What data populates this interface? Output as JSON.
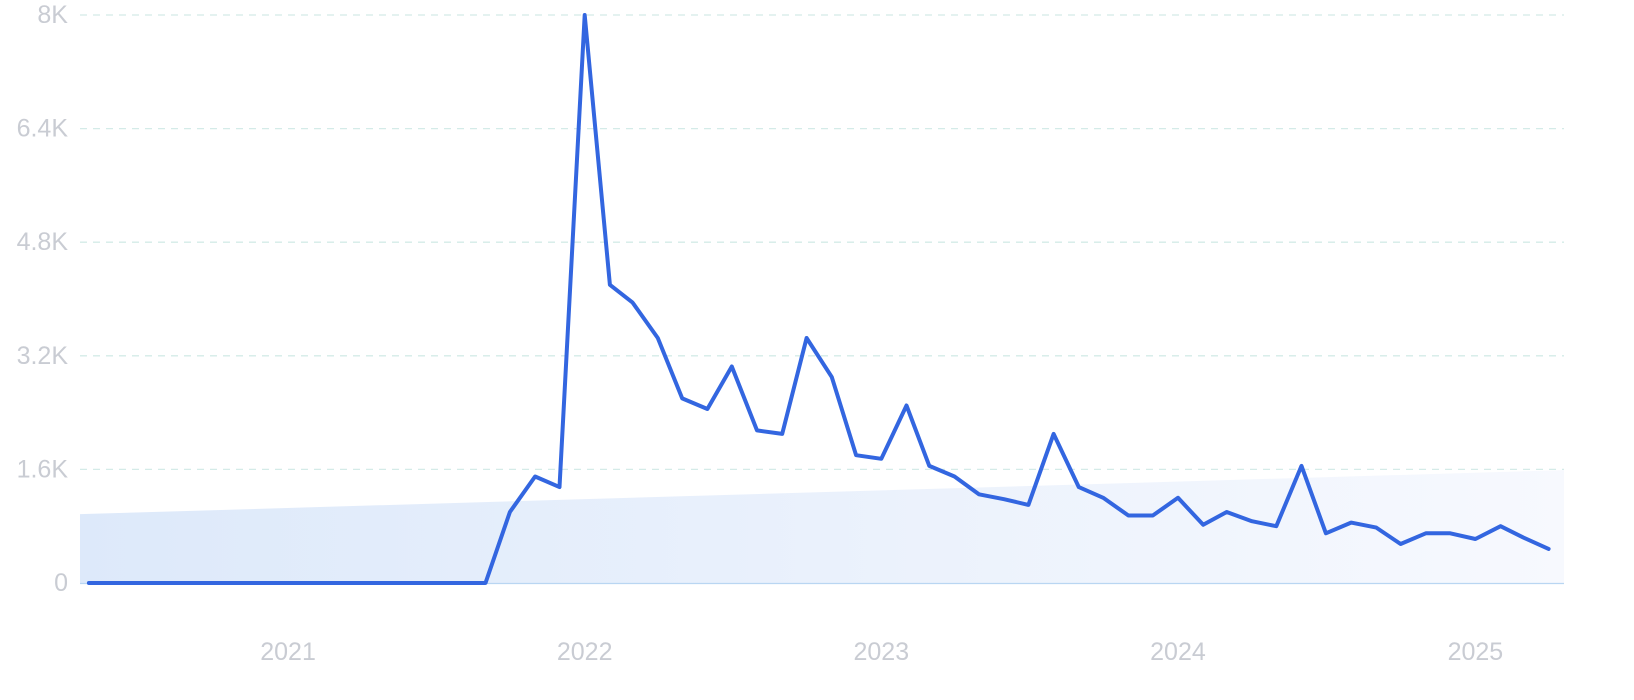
{
  "chart_data": {
    "type": "area",
    "x": [
      "2020-05",
      "2020-06",
      "2020-07",
      "2020-08",
      "2020-09",
      "2020-10",
      "2020-11",
      "2020-12",
      "2021-01",
      "2021-02",
      "2021-03",
      "2021-04",
      "2021-05",
      "2021-06",
      "2021-07",
      "2021-08",
      "2021-09",
      "2021-10",
      "2021-11",
      "2021-12",
      "2022-01",
      "2022-02",
      "2022-03",
      "2022-04",
      "2022-05",
      "2022-06",
      "2022-07",
      "2022-08",
      "2022-09",
      "2022-10",
      "2022-11",
      "2022-12",
      "2023-01",
      "2023-02",
      "2023-03",
      "2023-04",
      "2023-05",
      "2023-06",
      "2023-07",
      "2023-08",
      "2023-09",
      "2023-10",
      "2023-11",
      "2023-12",
      "2024-01",
      "2024-02",
      "2024-03",
      "2024-04",
      "2024-05",
      "2024-06",
      "2024-07",
      "2024-08",
      "2024-09",
      "2024-10",
      "2024-11",
      "2024-12",
      "2025-01",
      "2025-02",
      "2025-03",
      "2025-04"
    ],
    "values": [
      0,
      0,
      0,
      0,
      0,
      0,
      0,
      0,
      0,
      0,
      0,
      0,
      0,
      0,
      0,
      0,
      0,
      1000,
      1500,
      1350,
      8000,
      4200,
      3950,
      3450,
      2600,
      2450,
      3050,
      2150,
      2100,
      3450,
      2900,
      1800,
      1750,
      2500,
      1650,
      1500,
      1250,
      1180,
      1100,
      2100,
      1350,
      1200,
      950,
      950,
      1200,
      820,
      1000,
      870,
      800,
      1650,
      700,
      850,
      780,
      550,
      700,
      700,
      620,
      800,
      640,
      480
    ],
    "ylim": [
      0,
      8000
    ],
    "xlim": [
      "2020-04-20",
      "2025-04-20"
    ],
    "y_ticks": [
      0,
      1600,
      3200,
      4800,
      6400,
      8000
    ],
    "y_tick_labels": [
      "0",
      "1.6K",
      "3.2K",
      "4.8K",
      "6.4K",
      "8K"
    ],
    "x_ticks": [
      "2021-01",
      "2022-01",
      "2023-01",
      "2024-01",
      "2025-01"
    ],
    "x_tick_labels": [
      "2021",
      "2022",
      "2023",
      "2024",
      "2025"
    ],
    "trend_band": {
      "start_value": 970,
      "end_value": 1590
    },
    "grid": "horizontal-dashed",
    "legend": "none",
    "title": "",
    "xlabel": "",
    "ylabel": "",
    "colors": {
      "line": "#3366e0",
      "grid": "#d4ebe8",
      "tick_label": "#c9ccd3",
      "band_start": "#dde9fa",
      "band_end": "#f7f9fe",
      "baseline": "#b9d6f2"
    }
  }
}
